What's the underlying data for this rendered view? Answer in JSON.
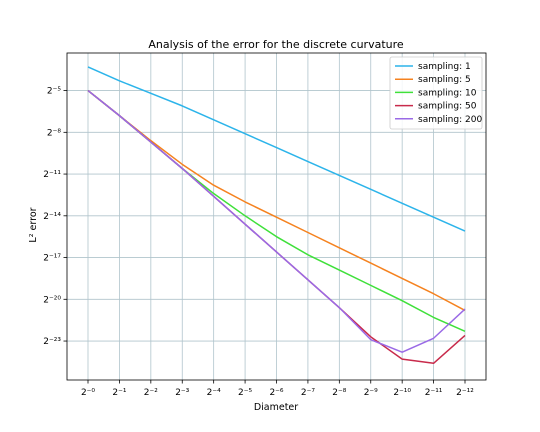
{
  "chart_data": {
    "type": "line",
    "title": "Analysis of the error for the discrete curvature",
    "xlabel": "Diameter",
    "ylabel": "L² error",
    "x_scale": "log2, decreasing",
    "y_scale": "log2",
    "grid": true,
    "legend_placement": "top-right",
    "x": [
      1,
      0.5,
      0.25,
      0.125,
      0.0625,
      0.03125,
      0.015625,
      0.0078125,
      0.00390625,
      0.001953125,
      0.0009765625,
      0.00048828125,
      0.000244140625
    ],
    "x_tick_labels": [
      "2⁻⁰",
      "2⁻¹",
      "2⁻²",
      "2⁻³",
      "2⁻⁴",
      "2⁻⁵",
      "2⁻⁶",
      "2⁻⁷",
      "2⁻⁸",
      "2⁻⁹",
      "2⁻¹⁰",
      "2⁻¹¹",
      "2⁻¹²"
    ],
    "y_tick_labels": [
      "2⁻⁵",
      "2⁻⁸",
      "2⁻¹¹",
      "2⁻¹⁴",
      "2⁻¹⁷",
      "2⁻²⁰",
      "2⁻²³"
    ],
    "y_ticks_log2": [
      -5,
      -8,
      -11,
      -14,
      -17,
      -20,
      -23
    ],
    "ylim_log2": [
      -25.8,
      -2.3
    ],
    "series": [
      {
        "name": "sampling: 1",
        "color": "#2cb4ea",
        "log2_values": [
          -3.3,
          -4.3,
          -5.2,
          -6.1,
          -7.1,
          -8.1,
          -9.1,
          -10.1,
          -11.1,
          -12.1,
          -13.1,
          -14.1,
          -15.1
        ]
      },
      {
        "name": "sampling: 5",
        "color": "#f5821f",
        "log2_values": [
          -5.0,
          -6.8,
          -8.6,
          -10.3,
          -11.8,
          -13.0,
          -14.1,
          -15.2,
          -16.3,
          -17.4,
          -18.5,
          -19.6,
          -20.8
        ]
      },
      {
        "name": "sampling: 10",
        "color": "#3fe03a",
        "log2_values": [
          -5.0,
          -6.8,
          -8.7,
          -10.6,
          -12.4,
          -14.0,
          -15.5,
          -16.8,
          -17.9,
          -19.0,
          -20.1,
          -21.3,
          -22.3
        ]
      },
      {
        "name": "sampling: 50",
        "color": "#c82a4b",
        "log2_values": [
          -5.0,
          -6.8,
          -8.7,
          -10.6,
          -12.6,
          -14.6,
          -16.6,
          -18.6,
          -20.6,
          -22.7,
          -24.3,
          -24.6,
          -22.6
        ]
      },
      {
        "name": "sampling: 200",
        "color": "#9a6ae6",
        "log2_values": [
          -5.0,
          -6.8,
          -8.7,
          -10.6,
          -12.6,
          -14.6,
          -16.6,
          -18.6,
          -20.6,
          -22.9,
          -23.8,
          -22.8,
          -20.7
        ]
      }
    ]
  }
}
